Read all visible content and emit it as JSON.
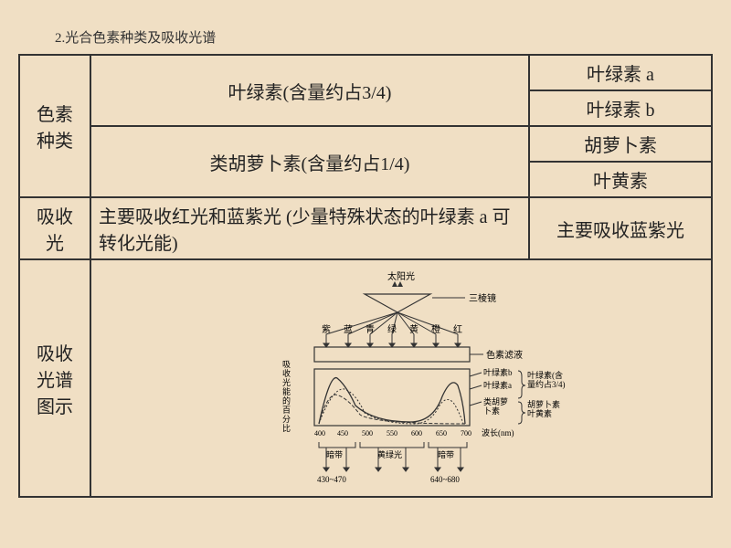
{
  "title": "2.光合色素种类及吸收光谱",
  "rows": {
    "pigment_types_label": "色素\n种类",
    "chlorophyll_group": "叶绿素(含量约占3/4)",
    "chlorophyll_a": "叶绿素 a",
    "chlorophyll_b": "叶绿素 b",
    "carotenoid_group": "类胡萝卜素(含量约占1/4)",
    "carotene": "胡萝卜素",
    "xanthophyll": "叶黄素",
    "absorb_label": "吸收\n光",
    "absorb_chlorophyll": "主要吸收红光和蓝紫光 (少量特殊状态的叶绿素 a 可转化光能)",
    "absorb_carotenoid": "主要吸收蓝紫光",
    "spectrum_label": "吸收\n光谱\n图示"
  },
  "diagram": {
    "sunlight": "太阳光",
    "prism": "三棱镜",
    "colors": [
      "紫",
      "蓝",
      "青",
      "绿",
      "黄",
      "橙",
      "红"
    ],
    "filter_label": "色素滤液",
    "y_axis": "吸收光能的百分比",
    "legend_chl_b": "叶绿素b",
    "legend_chl_a": "叶绿素a",
    "legend_carotenoid": "类胡萝卜素",
    "legend_chl_group": "叶绿素(含\n量约占3/4)",
    "legend_car_group": "胡萝卜素\n叶黄素",
    "wavelength_label": "波长(nm)",
    "x_ticks": [
      "400",
      "450",
      "500",
      "550",
      "600",
      "650",
      "700"
    ],
    "dark_band": "暗带",
    "yellow_green": "黄绿光",
    "range1": "430~470",
    "range2": "640~680",
    "colors_hex": {
      "border": "#333333",
      "text": "#222222"
    }
  }
}
